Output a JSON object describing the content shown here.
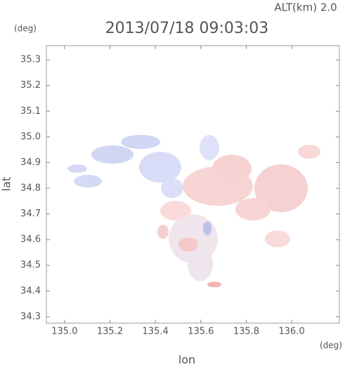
{
  "chart_data": {
    "type": "map",
    "title": "2013/07/18 09:03:03",
    "subtitle": "ALT(km) 2.0",
    "x_label": "lon",
    "y_label": "lat",
    "x_unit": "(deg)",
    "y_unit": "(deg)",
    "xlim": [
      134.92,
      136.21
    ],
    "ylim": [
      34.275,
      35.355
    ],
    "xticks": [
      {
        "value": 135,
        "label": "135.0"
      },
      135.2,
      135.4,
      135.6,
      135.8,
      {
        "value": 136,
        "label": "136.0"
      }
    ],
    "yticks": [
      34.3,
      34.4,
      34.5,
      34.6,
      34.7,
      34.8,
      34.9,
      {
        "value": 35,
        "label": "35.0"
      },
      35.1,
      35.2,
      35.3
    ]
  }
}
